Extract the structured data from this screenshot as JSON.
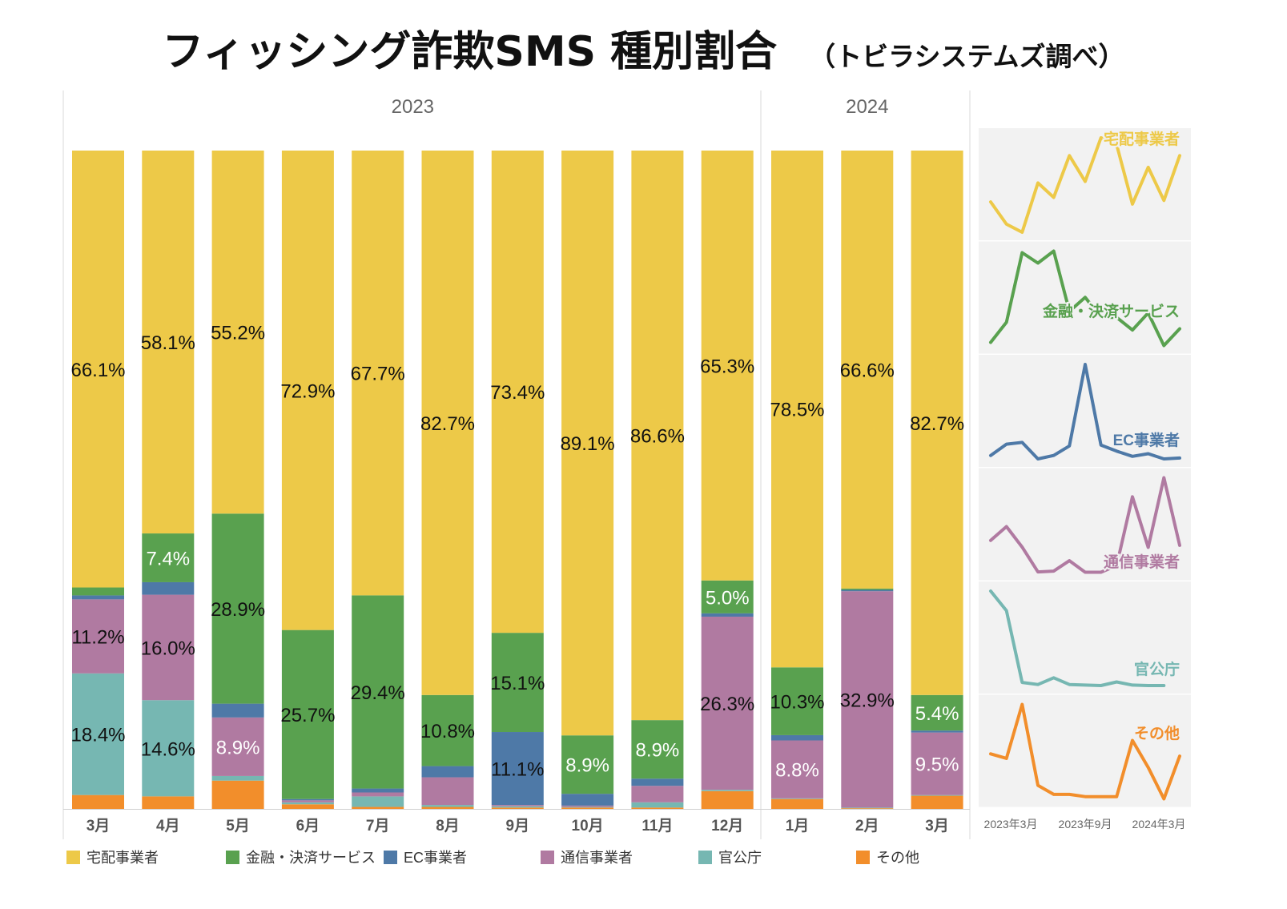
{
  "title": "フィッシング詐欺SMS 種別割合",
  "subtitle": "（トビラシステムズ調べ）",
  "chart_data": {
    "type": "bar",
    "stacked": true,
    "normalized": true,
    "year_groups": [
      {
        "label": "2023",
        "count": 10
      },
      {
        "label": "2024",
        "count": 3
      }
    ],
    "categories": [
      "3月",
      "4月",
      "5月",
      "6月",
      "7月",
      "8月",
      "9月",
      "10月",
      "11月",
      "12月",
      "1月",
      "2月",
      "3月"
    ],
    "series": [
      {
        "name": "その他",
        "color": "#F28E2B",
        "values": [
          2.1,
          1.9,
          4.3,
          0.7,
          0.3,
          0.3,
          0.2,
          0.2,
          0.2,
          2.7,
          1.5,
          0.1,
          2.0
        ]
      },
      {
        "name": "官公庁",
        "color": "#76B7B2",
        "values": [
          18.4,
          14.6,
          0.7,
          0.3,
          1.6,
          0.3,
          0.2,
          0.1,
          0.8,
          0.2,
          0.1,
          0.1,
          0.1
        ]
      },
      {
        "name": "通信事業者",
        "color": "#B07AA1",
        "values": [
          11.2,
          16.0,
          8.9,
          0.3,
          0.6,
          4.2,
          0.2,
          0.2,
          2.5,
          26.3,
          8.8,
          32.9,
          9.5
        ]
      },
      {
        "name": "EC事業者",
        "color": "#4E79A7",
        "values": [
          0.6,
          1.9,
          2.1,
          0.2,
          0.6,
          1.7,
          11.1,
          1.8,
          1.1,
          0.5,
          0.8,
          0.2,
          0.3
        ]
      },
      {
        "name": "金融・決済サービス",
        "color": "#59A14F",
        "values": [
          1.2,
          7.4,
          28.9,
          25.7,
          29.4,
          10.8,
          15.1,
          8.9,
          8.9,
          5.0,
          10.3,
          0.2,
          5.4
        ]
      },
      {
        "name": "宅配事業者",
        "color": "#EDC948",
        "values": [
          66.1,
          58.1,
          55.2,
          72.9,
          67.7,
          82.7,
          73.4,
          89.1,
          86.6,
          65.3,
          78.5,
          66.6,
          82.7
        ]
      }
    ],
    "data_labels": [
      {
        "col": 0,
        "series": "宅配事業者",
        "text": "66.1%",
        "light": false
      },
      {
        "col": 0,
        "series": "通信事業者",
        "text": "11.2%",
        "light": false
      },
      {
        "col": 0,
        "series": "官公庁",
        "text": "18.4%",
        "light": false
      },
      {
        "col": 1,
        "series": "宅配事業者",
        "text": "58.1%",
        "light": false
      },
      {
        "col": 1,
        "series": "金融・決済サービス",
        "text": "7.4%",
        "light": true
      },
      {
        "col": 1,
        "series": "通信事業者",
        "text": "16.0%",
        "light": false
      },
      {
        "col": 1,
        "series": "官公庁",
        "text": "14.6%",
        "light": false
      },
      {
        "col": 2,
        "series": "宅配事業者",
        "text": "55.2%",
        "light": false
      },
      {
        "col": 2,
        "series": "金融・決済サービス",
        "text": "28.9%",
        "light": false
      },
      {
        "col": 2,
        "series": "通信事業者",
        "text": "8.9%",
        "light": true
      },
      {
        "col": 3,
        "series": "宅配事業者",
        "text": "72.9%",
        "light": false
      },
      {
        "col": 3,
        "series": "金融・決済サービス",
        "text": "25.7%",
        "light": false
      },
      {
        "col": 4,
        "series": "宅配事業者",
        "text": "67.7%",
        "light": false
      },
      {
        "col": 4,
        "series": "金融・決済サービス",
        "text": "29.4%",
        "light": false
      },
      {
        "col": 5,
        "series": "宅配事業者",
        "text": "82.7%",
        "light": false
      },
      {
        "col": 5,
        "series": "金融・決済サービス",
        "text": "10.8%",
        "light": false
      },
      {
        "col": 6,
        "series": "宅配事業者",
        "text": "73.4%",
        "light": false
      },
      {
        "col": 6,
        "series": "金融・決済サービス",
        "text": "15.1%",
        "light": false
      },
      {
        "col": 6,
        "series": "EC事業者",
        "text": "11.1%",
        "light": false
      },
      {
        "col": 7,
        "series": "宅配事業者",
        "text": "89.1%",
        "light": false
      },
      {
        "col": 7,
        "series": "金融・決済サービス",
        "text": "8.9%",
        "light": true
      },
      {
        "col": 8,
        "series": "宅配事業者",
        "text": "86.6%",
        "light": false
      },
      {
        "col": 8,
        "series": "金融・決済サービス",
        "text": "8.9%",
        "light": true
      },
      {
        "col": 9,
        "series": "宅配事業者",
        "text": "65.3%",
        "light": false
      },
      {
        "col": 9,
        "series": "金融・決済サービス",
        "text": "5.0%",
        "light": true
      },
      {
        "col": 9,
        "series": "通信事業者",
        "text": "26.3%",
        "light": false
      },
      {
        "col": 10,
        "series": "宅配事業者",
        "text": "78.5%",
        "light": false
      },
      {
        "col": 10,
        "series": "金融・決済サービス",
        "text": "10.3%",
        "light": false
      },
      {
        "col": 10,
        "series": "通信事業者",
        "text": "8.8%",
        "light": true
      },
      {
        "col": 11,
        "series": "宅配事業者",
        "text": "66.6%",
        "light": false
      },
      {
        "col": 11,
        "series": "通信事業者",
        "text": "32.9%",
        "light": false
      },
      {
        "col": 12,
        "series": "宅配事業者",
        "text": "82.7%",
        "light": false
      },
      {
        "col": 12,
        "series": "金融・決済サービス",
        "text": "5.4%",
        "light": true
      },
      {
        "col": 12,
        "series": "通信事業者",
        "text": "9.5%",
        "light": true
      }
    ],
    "legend": [
      "宅配事業者",
      "金融・決済サービス",
      "EC事業者",
      "通信事業者",
      "官公庁",
      "その他"
    ],
    "sparklines": {
      "type": "line",
      "x_ticks": [
        "2023年3月",
        "2023年9月",
        "2024年3月"
      ],
      "panels": [
        {
          "name": "宅配事業者",
          "color": "#EDC948"
        },
        {
          "name": "金融・決済サービス",
          "color": "#59A14F"
        },
        {
          "name": "EC事業者",
          "color": "#4E79A7"
        },
        {
          "name": "通信事業者",
          "color": "#B07AA1"
        },
        {
          "name": "官公庁",
          "color": "#76B7B2",
          "skip_last": true
        },
        {
          "name": "その他",
          "color": "#F28E2B"
        }
      ]
    }
  }
}
